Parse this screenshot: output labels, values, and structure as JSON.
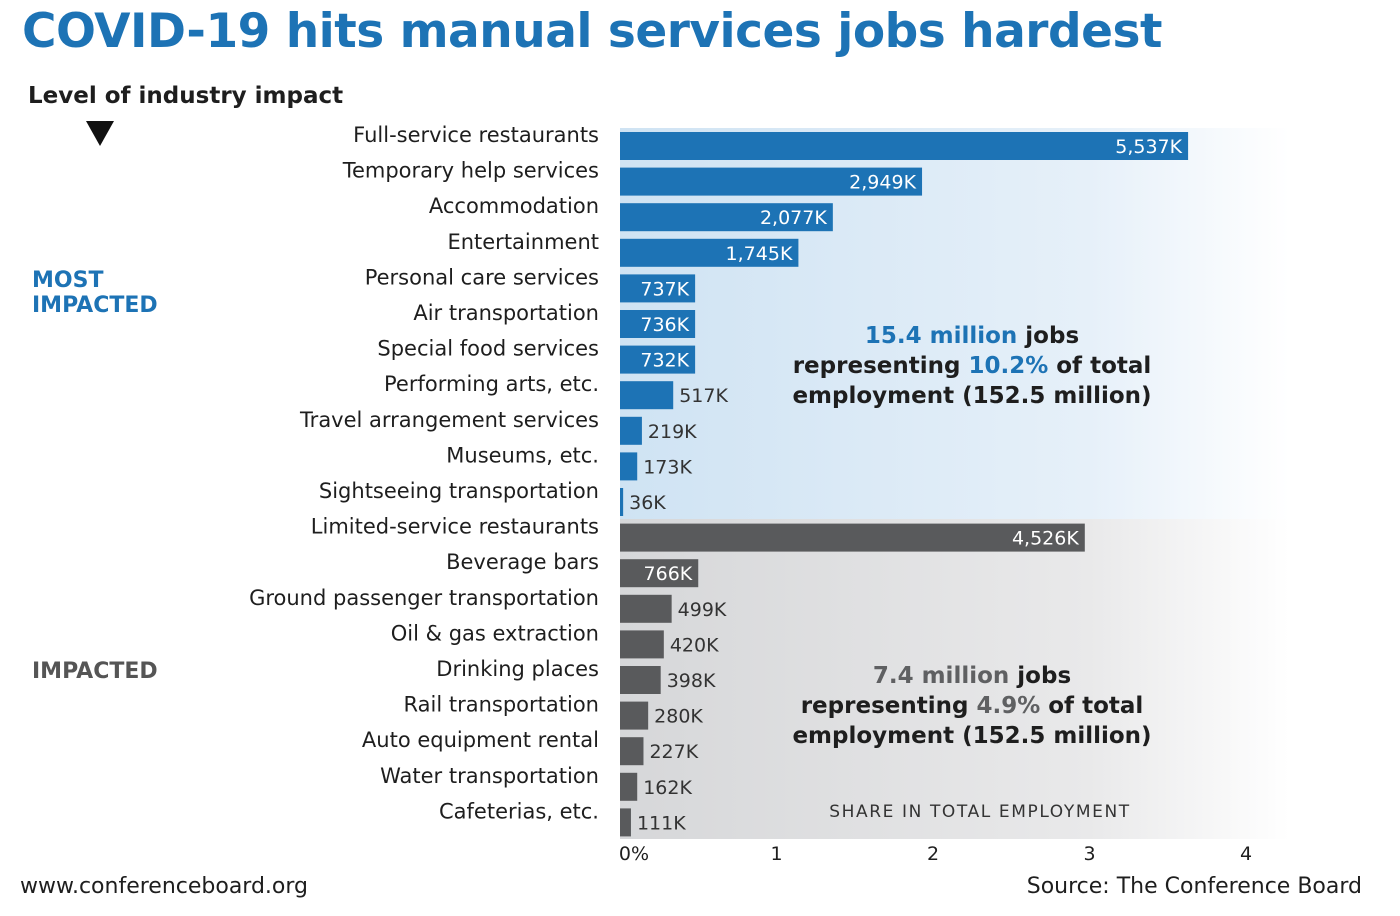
{
  "title": "COVID-19 hits manual services jobs hardest",
  "level_label": "Level of industry impact",
  "groups": {
    "most": {
      "line1": "MOST",
      "line2": "IMPACTED",
      "color": "#1d73b5"
    },
    "impacted": {
      "label": "IMPACTED",
      "color": "#595a5c"
    }
  },
  "summaries": {
    "most": {
      "highlight1": "15.4 million",
      "text1": " jobs",
      "text2a": "representing ",
      "highlight2": "10.2%",
      "text2b": " of total",
      "text3": "employment (152.5 million)"
    },
    "impacted": {
      "highlight1": "7.4 million",
      "text1": " jobs",
      "text2a": "representing ",
      "highlight2": "4.9%",
      "text2b": " of total",
      "text3": "employment (152.5 million)"
    }
  },
  "footer": {
    "left": "www.conferenceboard.org",
    "right": "Source: The Conference Board"
  },
  "colors": {
    "most_bar": "#1d73b5",
    "impacted_bar": "#595a5c",
    "title": "#1d73b5"
  },
  "chart_data": {
    "type": "bar",
    "orientation": "horizontal",
    "xlabel": "SHARE IN TOTAL EMPLOYMENT",
    "xlim": [
      0,
      4
    ],
    "xticks": [
      0,
      1,
      2,
      3,
      4
    ],
    "xtick_labels": [
      "0%",
      "1",
      "2",
      "3",
      "4"
    ],
    "series": [
      {
        "name": "MOST IMPACTED",
        "categories": [
          "Full-service restaurants",
          "Temporary help services",
          "Accommodation",
          "Entertainment",
          "Personal care services",
          "Air transportation",
          "Special food services",
          "Performing arts, etc.",
          "Travel arrangement services",
          "Museums, etc.",
          "Sightseeing transportation"
        ],
        "values": [
          3.63,
          1.93,
          1.36,
          1.14,
          0.48,
          0.48,
          0.48,
          0.34,
          0.14,
          0.11,
          0.02
        ],
        "data_labels": [
          "5,537K",
          "2,949K",
          "2,077K",
          "1,745K",
          "737K",
          "736K",
          "732K",
          "517K",
          "219K",
          "173K",
          "36K"
        ]
      },
      {
        "name": "IMPACTED",
        "categories": [
          "Limited-service restaurants",
          "Beverage bars",
          "Ground passenger transportation",
          "Oil & gas extraction",
          "Drinking places",
          "Rail transportation",
          "Auto equipment rental",
          "Water transportation",
          "Cafeterias, etc."
        ],
        "values": [
          2.97,
          0.5,
          0.33,
          0.28,
          0.26,
          0.18,
          0.15,
          0.11,
          0.07
        ],
        "data_labels": [
          "4,526K",
          "766K",
          "499K",
          "420K",
          "398K",
          "280K",
          "227K",
          "162K",
          "111K"
        ]
      }
    ]
  }
}
